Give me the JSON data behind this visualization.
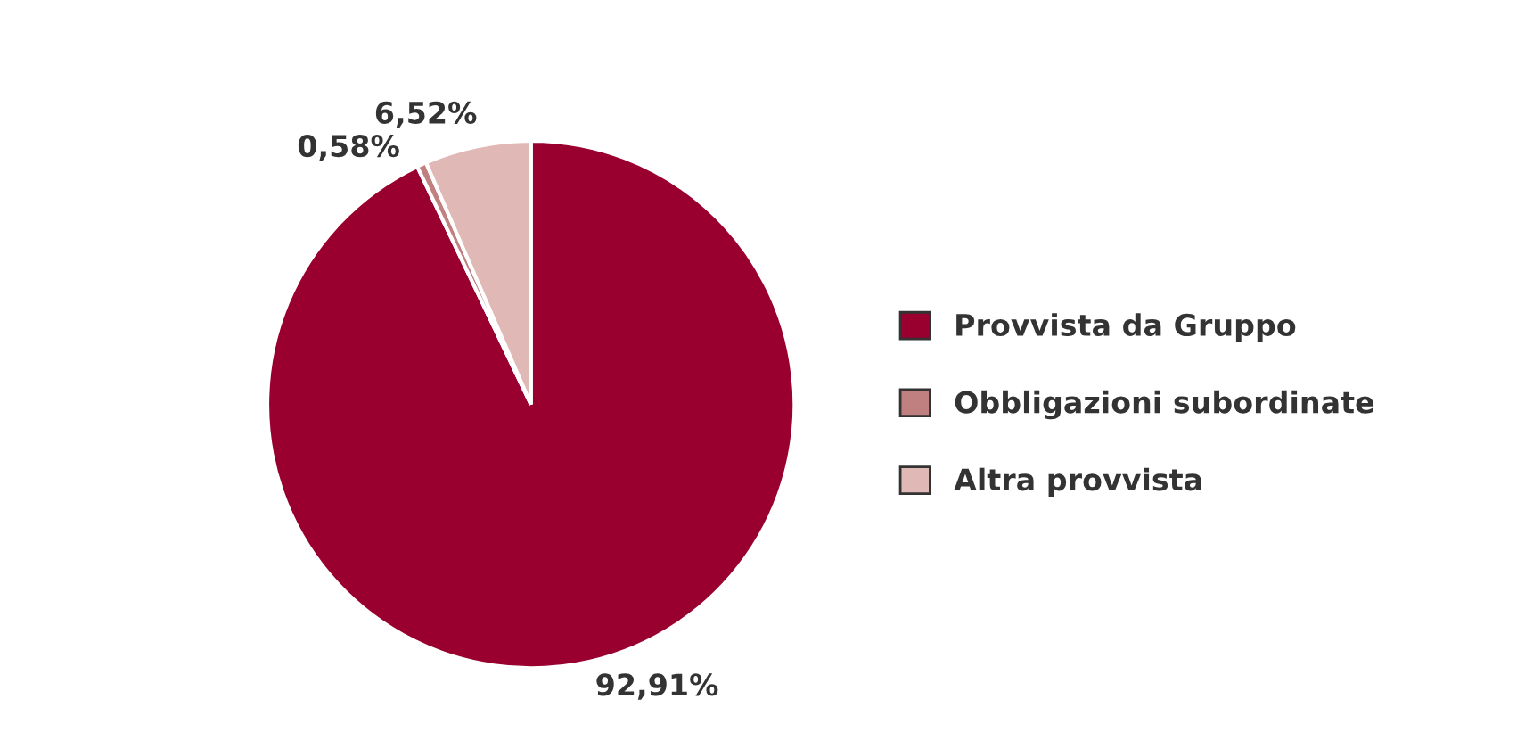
{
  "chart_data": {
    "type": "pie",
    "categories": [
      "Provvista da Gruppo",
      "Obbligazioni subordinate",
      "Altra provvista"
    ],
    "values": [
      92.91,
      0.58,
      6.52
    ],
    "value_labels": [
      "92,91%",
      "0,58%",
      "6,52%"
    ],
    "colors": [
      "#990030",
      "#c08080",
      "#e0b8b5"
    ],
    "legend": "right"
  }
}
